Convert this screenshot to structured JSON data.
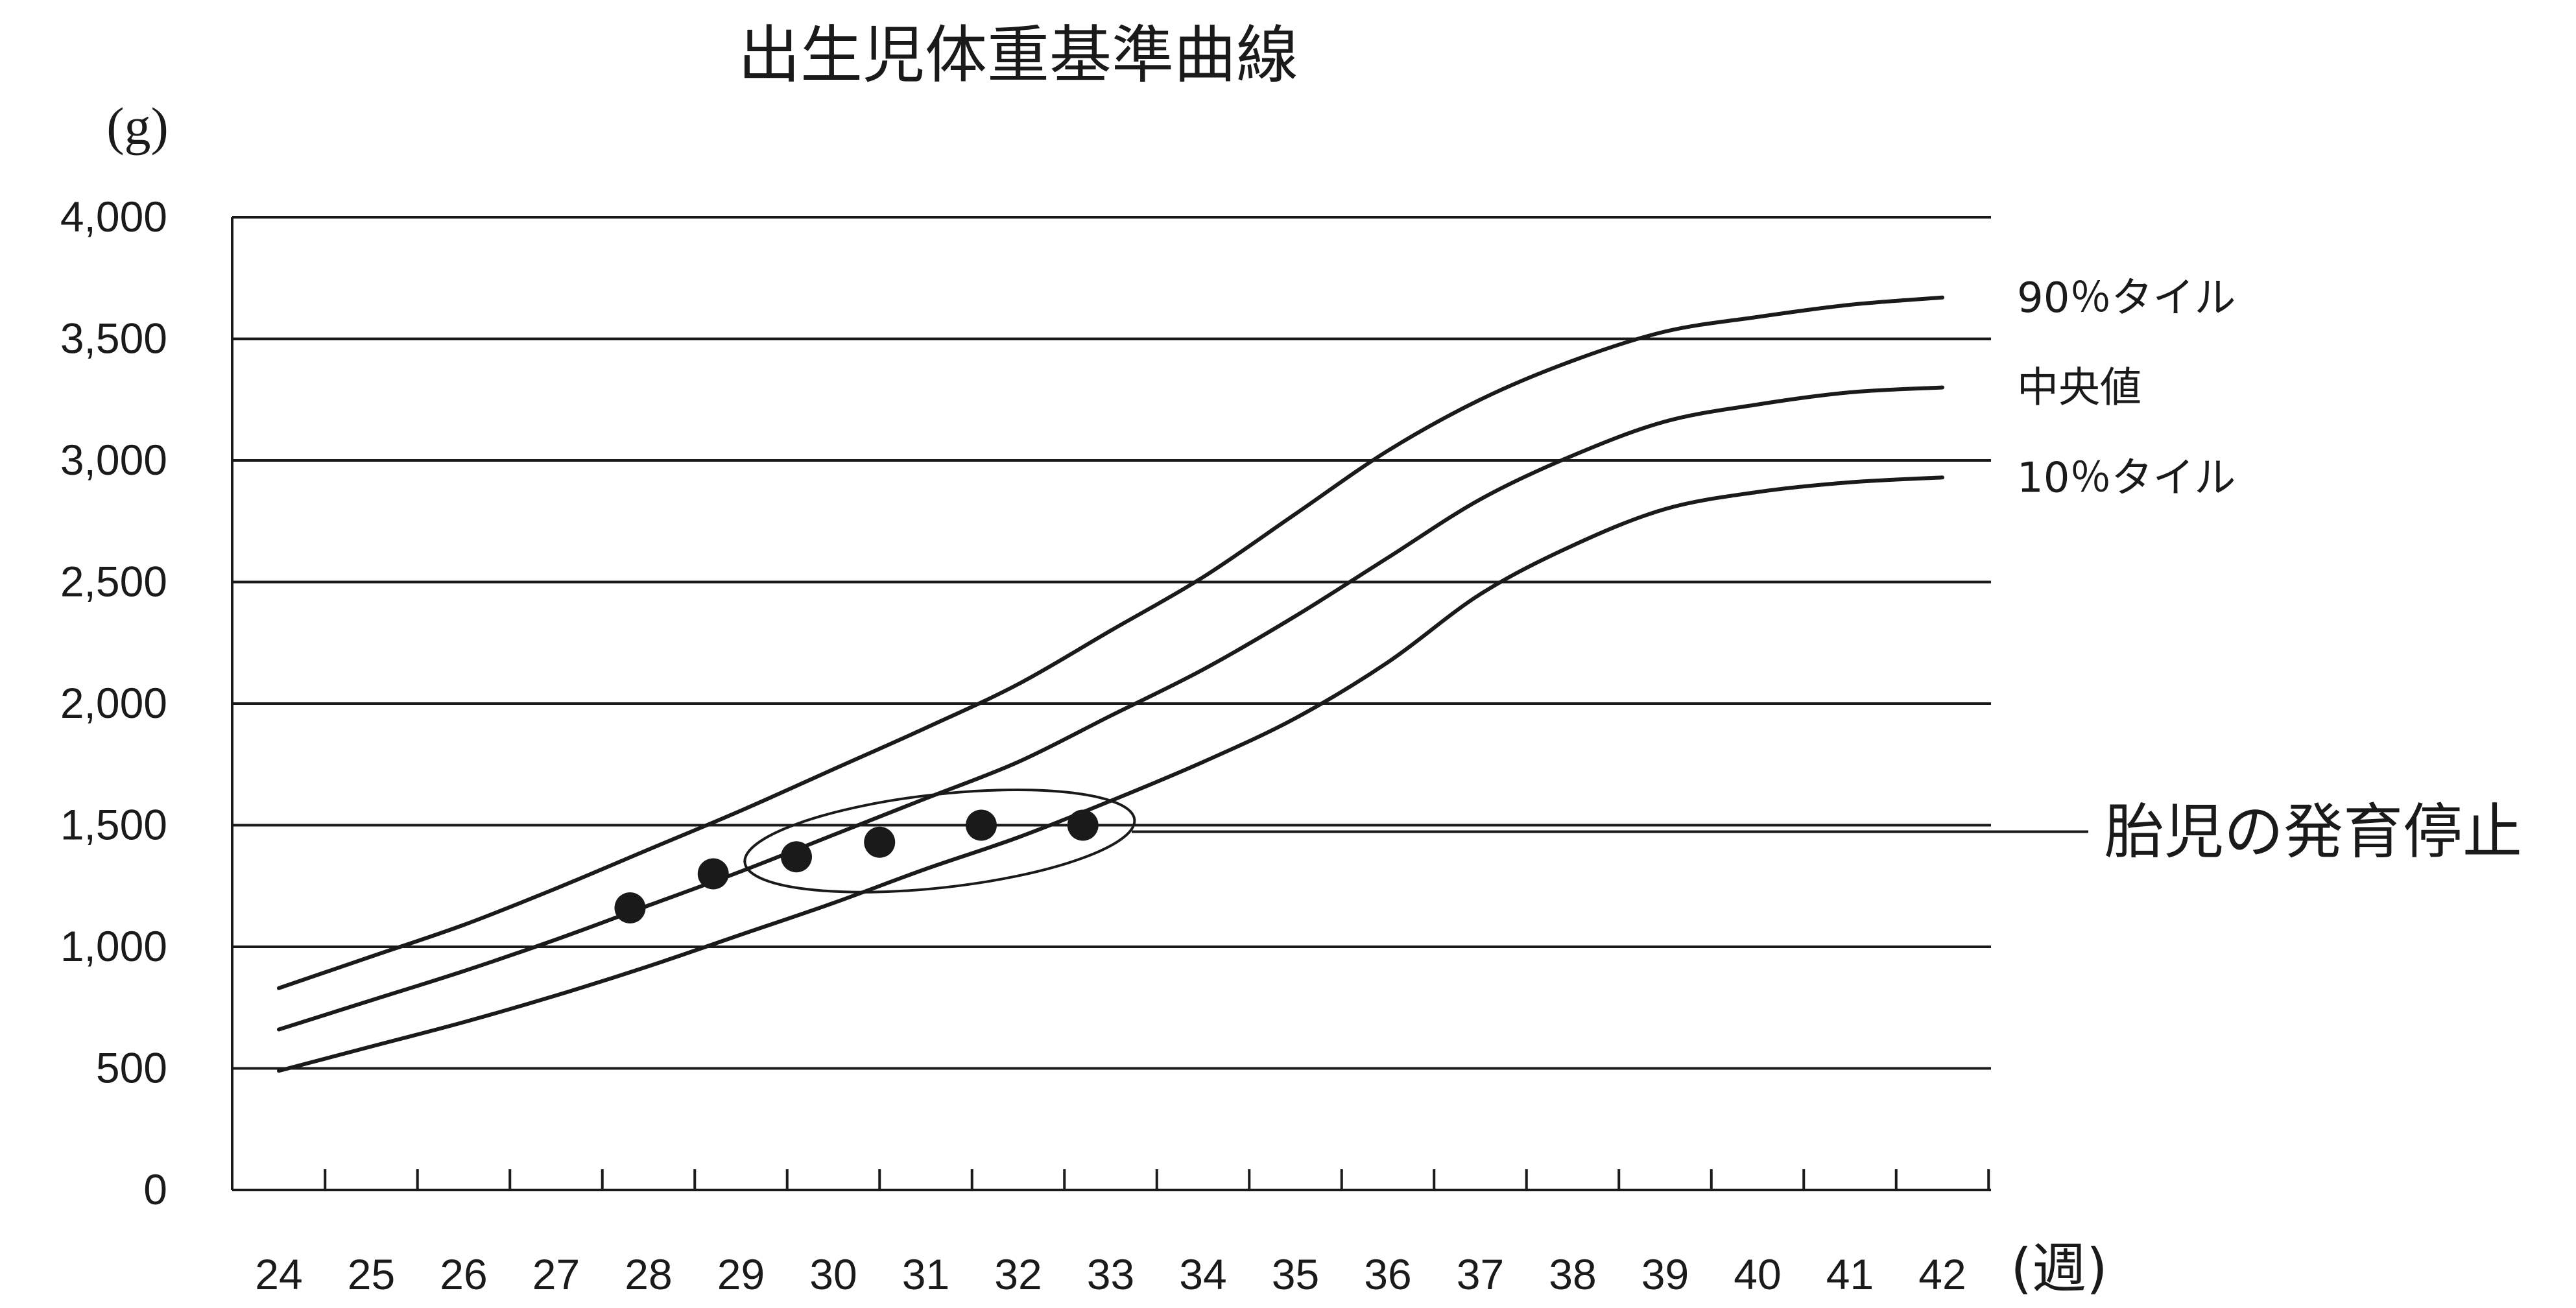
{
  "chart_data": {
    "type": "line",
    "title": "出生児体重基準曲線",
    "ylabel": "(g)",
    "xlabel": "(週)",
    "x": [
      24,
      25,
      26,
      27,
      28,
      29,
      30,
      31,
      32,
      33,
      34,
      35,
      36,
      37,
      38,
      39,
      40,
      41,
      42
    ],
    "ylim": [
      0,
      4000
    ],
    "yticks": [
      0,
      500,
      1000,
      1500,
      2000,
      2500,
      3000,
      3500,
      4000
    ],
    "ytick_labels": [
      "0",
      "500",
      "1,000",
      "1,500",
      "2,000",
      "2,500",
      "3,000",
      "3,500",
      "4,000"
    ],
    "grid": true,
    "series": [
      {
        "name": "90％タイル",
        "values": [
          830,
          960,
          1090,
          1240,
          1400,
          1560,
          1730,
          1900,
          2080,
          2300,
          2520,
          2780,
          3040,
          3250,
          3410,
          3530,
          3590,
          3640,
          3670
        ]
      },
      {
        "name": "中央値",
        "values": [
          660,
          780,
          900,
          1030,
          1170,
          1310,
          1460,
          1610,
          1760,
          1950,
          2140,
          2360,
          2600,
          2840,
          3020,
          3160,
          3230,
          3280,
          3300
        ]
      },
      {
        "name": "10％タイル",
        "values": [
          490,
          590,
          690,
          800,
          920,
          1050,
          1180,
          1320,
          1450,
          1600,
          1760,
          1940,
          2170,
          2450,
          2650,
          2800,
          2870,
          2910,
          2930
        ]
      }
    ],
    "measurements": {
      "x": [
        27.8,
        28.7,
        29.6,
        30.5,
        31.6,
        32.7
      ],
      "y": [
        1160,
        1300,
        1370,
        1430,
        1500,
        1500
      ]
    },
    "annotations": [
      {
        "text": "胎児の発育停止",
        "target": "measurements"
      }
    ]
  },
  "colors": {
    "line": "#1a1a1a",
    "grid": "#1a1a1a",
    "background": "#ffffff"
  }
}
